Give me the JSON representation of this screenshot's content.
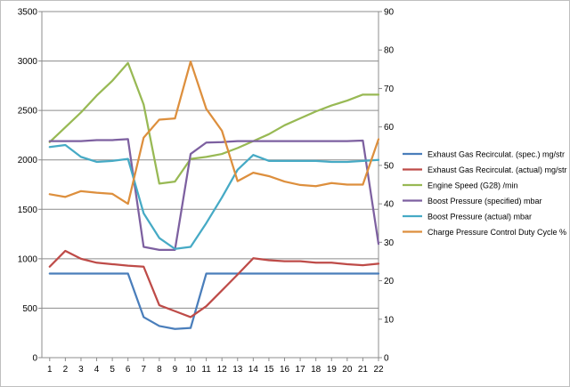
{
  "chart_data": {
    "type": "line",
    "title": "",
    "xlabel": "",
    "ylabel": "",
    "y2label": "",
    "categories": [
      "1",
      "2",
      "3",
      "4",
      "5",
      "6",
      "7",
      "8",
      "9",
      "10",
      "11",
      "12",
      "13",
      "14",
      "15",
      "16",
      "17",
      "18",
      "19",
      "20",
      "21",
      "22"
    ],
    "y_left": {
      "min": 0,
      "max": 3500,
      "ticks": [
        "0",
        "500",
        "1000",
        "1500",
        "2000",
        "2500",
        "3000",
        "3500"
      ]
    },
    "y_right": {
      "min": 0,
      "max": 90,
      "ticks": [
        "0",
        "10",
        "20",
        "30",
        "40",
        "50",
        "60",
        "70",
        "80",
        "90"
      ]
    },
    "grid": "horizontal major lines (left axis)",
    "legend_position": "right",
    "series": [
      {
        "name": "Exhaust Gas Recirculat. (spec.)  mg/str",
        "axis": "left",
        "color": "#4a7ebb",
        "values": [
          850,
          850,
          850,
          850,
          850,
          850,
          410,
          320,
          290,
          300,
          850,
          850,
          850,
          850,
          850,
          850,
          850,
          850,
          850,
          850,
          850,
          850
        ]
      },
      {
        "name": "Exhaust Gas Recirculat. (actual)  mg/str",
        "axis": "left",
        "color": "#be4b48",
        "values": [
          920,
          1080,
          1000,
          960,
          945,
          930,
          920,
          530,
          470,
          410,
          520,
          680,
          840,
          1005,
          985,
          975,
          975,
          960,
          960,
          945,
          935,
          950
        ]
      },
      {
        "name": "Engine Speed (G28)  /min",
        "axis": "left",
        "color": "#98b954",
        "values": [
          2180,
          2330,
          2480,
          2650,
          2800,
          2980,
          2560,
          1760,
          1780,
          2010,
          2030,
          2060,
          2120,
          2190,
          2260,
          2350,
          2420,
          2490,
          2550,
          2600,
          2660,
          2660
        ]
      },
      {
        "name": "Boost Pressure (specified)  mbar",
        "axis": "left",
        "color": "#7d60a0",
        "values": [
          2190,
          2190,
          2190,
          2200,
          2200,
          2210,
          1120,
          1090,
          1090,
          2060,
          2175,
          2180,
          2190,
          2190,
          2190,
          2190,
          2190,
          2190,
          2190,
          2190,
          2195,
          1150
        ]
      },
      {
        "name": "Boost Pressure (actual)  mbar",
        "axis": "left",
        "color": "#46aac5",
        "values": [
          2130,
          2150,
          2030,
          1980,
          1990,
          2010,
          1460,
          1210,
          1100,
          1120,
          1360,
          1620,
          1900,
          2050,
          1990,
          1990,
          1990,
          1990,
          1980,
          1980,
          1990,
          2000
        ]
      },
      {
        "name": "Charge Pressure Control Duty Cycle  %",
        "axis": "right",
        "color": "#dd8f3d",
        "values": [
          42.5,
          41.8,
          43.3,
          42.9,
          42.6,
          40.0,
          57.2,
          61.9,
          62.2,
          77.0,
          64.7,
          59.0,
          45.9,
          48.1,
          47.2,
          45.8,
          44.9,
          44.6,
          45.4,
          45.0,
          45.0,
          56.8
        ]
      }
    ]
  }
}
